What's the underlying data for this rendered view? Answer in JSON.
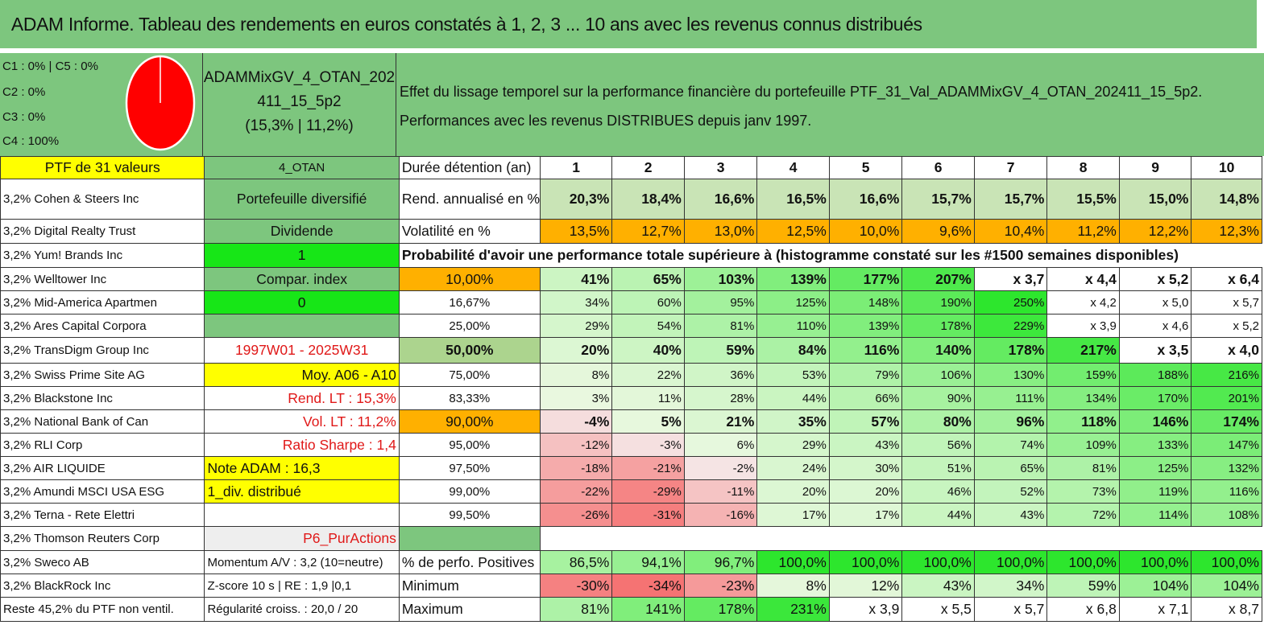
{
  "title": "ADAM Informe. Tableau des rendements en euros constatés à 1, 2, 3 ... 10 ans avec les revenus connus distribués",
  "caps": {
    "line1": "C1 : 0% | C5 : 0%",
    "line2": "C2 : 0%",
    "line3": "C3 : 0%",
    "line4": "C4 : 100%"
  },
  "pie": {
    "color": "#ff0000",
    "share_c4": 1.0
  },
  "portfolio": {
    "name_line1": "ADAMMixGV_4_OTAN_202",
    "name_line2": "411_15_5p2",
    "name_line3": "(15,3% | 11,2%)"
  },
  "description": {
    "line1": "Effet du lissage temporel sur la performance financière du portefeuille PTF_31_Val_ADAMMixGV_4_OTAN_202411_15_5p2.",
    "line2": "Performances avec les revenus DISTRIBUES depuis janv 1997."
  },
  "header_row": {
    "holdings": "PTF de 31 valeurs",
    "code": "4_OTAN",
    "label": "Durée détention (an)",
    "years": [
      "1",
      "2",
      "3",
      "4",
      "5",
      "6",
      "7",
      "8",
      "9",
      "10"
    ]
  },
  "holdings": [
    "3,2% Cohen & Steers Inc",
    "3,2% Digital Realty Trust",
    "3,2% Yum! Brands Inc",
    "3,2% Welltower Inc",
    "3,2% Mid-America Apartmen",
    "3,2% Ares Capital Corpora",
    "3,2% TransDigm Group Inc",
    "3,2% Swiss Prime Site AG",
    "3,2% Blackstone Inc",
    "3,2% National Bank of Can",
    "3,2% RLI Corp",
    "3,2% AIR LIQUIDE",
    "3,2% Amundi MSCI USA ESG",
    "3,2% Terna - Rete Elettri",
    "3,2% Thomson Reuters Corp",
    "3,2% Sweco AB",
    "3,2% BlackRock Inc",
    "Reste 45,2% du PTF non ventil."
  ],
  "info_column": [
    "Portefeuille diversifié",
    "Dividende",
    "1",
    "Compar. index",
    "0",
    "",
    "1997W01 - 2025W31",
    "Moy. A06 - A10",
    "Rend. LT : 15,3%",
    "Vol. LT : 11,2%",
    "Ratio Sharpe : 1,4",
    "Note ADAM : 16,3",
    "1_div. distribué",
    "",
    "P6_PurActions",
    "Momentum A/V : 3,2 (10=neutre)",
    "Z-score 10 s | RE : 1,9 |0,1",
    "Régularité croiss. : 20,0 / 20"
  ],
  "rend": {
    "label": "Rend. annualisé en %",
    "values": [
      "20,3%",
      "18,4%",
      "16,6%",
      "16,5%",
      "16,6%",
      "15,7%",
      "15,7%",
      "15,5%",
      "15,0%",
      "14,8%"
    ]
  },
  "vol": {
    "label": "Volatilité en %",
    "values": [
      "13,5%",
      "12,7%",
      "13,0%",
      "12,5%",
      "10,0%",
      "9,6%",
      "10,4%",
      "11,2%",
      "12,2%",
      "12,3%"
    ]
  },
  "prob_title": "Probabilité d'avoir une performance totale supérieure à (histogramme constaté sur les #1500 semaines disponibles)",
  "quantiles": [
    {
      "label": "10,00%",
      "values": [
        "41%",
        "65%",
        "103%",
        "139%",
        "177%",
        "207%",
        "x 3,7",
        "x 4,4",
        "x 5,2",
        "x 6,4"
      ]
    },
    {
      "label": "16,67%",
      "values": [
        "34%",
        "60%",
        "95%",
        "125%",
        "148%",
        "190%",
        "250%",
        "x 4,2",
        "x 5,0",
        "x 5,7"
      ]
    },
    {
      "label": "25,00%",
      "values": [
        "29%",
        "54%",
        "81%",
        "110%",
        "139%",
        "178%",
        "229%",
        "x 3,9",
        "x 4,6",
        "x 5,2"
      ]
    },
    {
      "label": "50,00%",
      "values": [
        "20%",
        "40%",
        "59%",
        "84%",
        "116%",
        "140%",
        "178%",
        "217%",
        "x 3,5",
        "x 4,0"
      ]
    },
    {
      "label": "75,00%",
      "values": [
        "8%",
        "22%",
        "36%",
        "53%",
        "79%",
        "106%",
        "130%",
        "159%",
        "188%",
        "216%"
      ]
    },
    {
      "label": "83,33%",
      "values": [
        "3%",
        "11%",
        "28%",
        "44%",
        "66%",
        "90%",
        "111%",
        "134%",
        "170%",
        "201%"
      ]
    },
    {
      "label": "90,00%",
      "values": [
        "-4%",
        "5%",
        "21%",
        "35%",
        "57%",
        "80%",
        "96%",
        "118%",
        "146%",
        "174%"
      ]
    },
    {
      "label": "95,00%",
      "values": [
        "-12%",
        "-3%",
        "6%",
        "29%",
        "43%",
        "56%",
        "74%",
        "109%",
        "133%",
        "147%"
      ]
    },
    {
      "label": "97,50%",
      "values": [
        "-18%",
        "-21%",
        "-2%",
        "24%",
        "30%",
        "51%",
        "65%",
        "81%",
        "125%",
        "132%"
      ]
    },
    {
      "label": "99,00%",
      "values": [
        "-22%",
        "-29%",
        "-11%",
        "20%",
        "20%",
        "46%",
        "52%",
        "73%",
        "119%",
        "116%"
      ]
    },
    {
      "label": "99,50%",
      "values": [
        "-26%",
        "-31%",
        "-16%",
        "17%",
        "17%",
        "44%",
        "43%",
        "72%",
        "114%",
        "108%"
      ]
    }
  ],
  "positives": {
    "label": "% de perfo. Positives",
    "values": [
      "86,5%",
      "94,1%",
      "96,7%",
      "100,0%",
      "100,0%",
      "100,0%",
      "100,0%",
      "100,0%",
      "100,0%",
      "100,0%"
    ]
  },
  "minimum": {
    "label": "Minimum",
    "values": [
      "-30%",
      "-34%",
      "-23%",
      "8%",
      "12%",
      "43%",
      "34%",
      "59%",
      "104%",
      "104%"
    ]
  },
  "maximum": {
    "label": "Maximum",
    "values": [
      "81%",
      "141%",
      "178%",
      "231%",
      "x 3,9",
      "x 5,5",
      "x 5,7",
      "x 6,8",
      "x 7,1",
      "x 8,7"
    ]
  },
  "colors": {
    "title_green": "#7dc67e",
    "yellow": "#ffff00",
    "bright_green": "#17e617",
    "orange": "#ffb000",
    "red_text": "#e01818"
  }
}
